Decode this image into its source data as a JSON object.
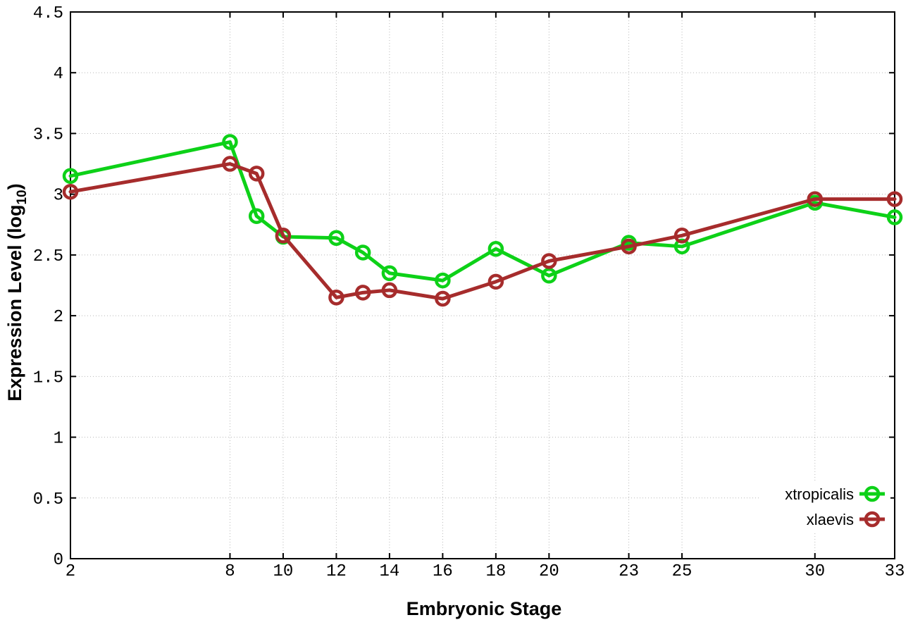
{
  "chart_data": {
    "type": "line",
    "title": "",
    "xlabel": "Embryonic Stage",
    "ylabel": "Expression Level (log10)",
    "ylabel_parts": {
      "main": "Expression Level (log",
      "sub": "10",
      "close": ")"
    },
    "x": [
      2,
      8,
      9,
      10,
      12,
      13,
      14,
      16,
      18,
      20,
      23,
      25,
      30,
      33
    ],
    "series": [
      {
        "name": "xtropicalis",
        "color": "#0dd118",
        "values": [
          3.15,
          3.43,
          2.82,
          2.65,
          2.64,
          2.52,
          2.35,
          2.29,
          2.55,
          2.33,
          2.6,
          2.57,
          2.93,
          2.81
        ]
      },
      {
        "name": "xlaevis",
        "color": "#a62c2c",
        "values": [
          3.02,
          3.25,
          3.17,
          2.66,
          2.15,
          2.19,
          2.21,
          2.14,
          2.28,
          2.45,
          2.57,
          2.66,
          2.96,
          2.96
        ]
      }
    ],
    "xlim": [
      2,
      33
    ],
    "ylim": [
      0,
      4.5
    ],
    "xticks": [
      2,
      8,
      10,
      12,
      14,
      16,
      18,
      20,
      23,
      25,
      30,
      33
    ],
    "xtick_labels": [
      "2",
      "8",
      "10",
      "12",
      "14",
      "16",
      "18",
      "20",
      "23",
      "25",
      "30",
      "33"
    ],
    "yticks": [
      0,
      0.5,
      1,
      1.5,
      2,
      2.5,
      3,
      3.5,
      4,
      4.5
    ],
    "ytick_labels": [
      "0",
      "0.5",
      "1",
      "1.5",
      "2",
      "2.5",
      "3",
      "3.5",
      "4",
      "4.5"
    ],
    "grid": true,
    "legend_position": "bottom-right",
    "marker": "open-circle"
  },
  "style": {
    "background_color": "#ffffff",
    "border_color": "#000000",
    "grid_color": "#b8b8b8",
    "line_width": 5,
    "marker_radius": 9,
    "marker_stroke": 4.5
  }
}
